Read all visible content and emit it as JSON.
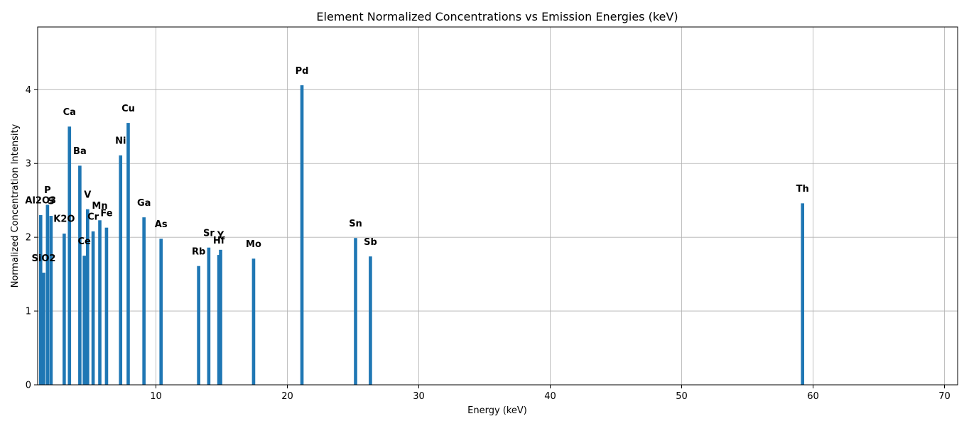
{
  "chart_data": {
    "type": "bar",
    "title": "Element Normalized Concentrations vs Emission Energies (keV)",
    "xlabel": "Energy (keV)",
    "ylabel": "Normalized Concentration Intensity",
    "xlim": [
      1.0,
      71.0
    ],
    "ylim": [
      0,
      4.85
    ],
    "xticks": [
      10,
      20,
      30,
      40,
      50,
      60,
      70
    ],
    "yticks": [
      0,
      1,
      2,
      3,
      4
    ],
    "grid": true,
    "bar_color": "#1f77b4",
    "bars": [
      {
        "label": "Al2O3",
        "x": 1.23,
        "value": 2.3
      },
      {
        "label": "SiO2",
        "x": 1.46,
        "value": 1.52
      },
      {
        "label": "P",
        "x": 1.75,
        "value": 2.44
      },
      {
        "label": "S",
        "x": 2.02,
        "value": 2.29
      },
      {
        "label": "K2O",
        "x": 3.02,
        "value": 2.05
      },
      {
        "label": "Ca",
        "x": 3.42,
        "value": 3.5
      },
      {
        "label": "Ba",
        "x": 4.21,
        "value": 2.97
      },
      {
        "label": "Ce",
        "x": 4.55,
        "value": 1.75
      },
      {
        "label": "V",
        "x": 4.8,
        "value": 2.38
      },
      {
        "label": "Cr",
        "x": 5.22,
        "value": 2.08
      },
      {
        "label": "Mn",
        "x": 5.73,
        "value": 2.23
      },
      {
        "label": "Fe",
        "x": 6.24,
        "value": 2.13
      },
      {
        "label": "Ni",
        "x": 7.31,
        "value": 3.11
      },
      {
        "label": "Cu",
        "x": 7.89,
        "value": 3.55
      },
      {
        "label": "Ga",
        "x": 9.09,
        "value": 2.27
      },
      {
        "label": "As",
        "x": 10.39,
        "value": 1.98
      },
      {
        "label": "Rb",
        "x": 13.25,
        "value": 1.61
      },
      {
        "label": "Sr",
        "x": 14.02,
        "value": 1.86
      },
      {
        "label": "Hf",
        "x": 14.79,
        "value": 1.76
      },
      {
        "label": "Y",
        "x": 14.92,
        "value": 1.83
      },
      {
        "label": "Mo",
        "x": 17.43,
        "value": 1.71
      },
      {
        "label": "Pd",
        "x": 21.11,
        "value": 4.06
      },
      {
        "label": "Sn",
        "x": 25.19,
        "value": 1.99
      },
      {
        "label": "Sb",
        "x": 26.32,
        "value": 1.74
      },
      {
        "label": "Th",
        "x": 59.2,
        "value": 2.46
      }
    ]
  }
}
